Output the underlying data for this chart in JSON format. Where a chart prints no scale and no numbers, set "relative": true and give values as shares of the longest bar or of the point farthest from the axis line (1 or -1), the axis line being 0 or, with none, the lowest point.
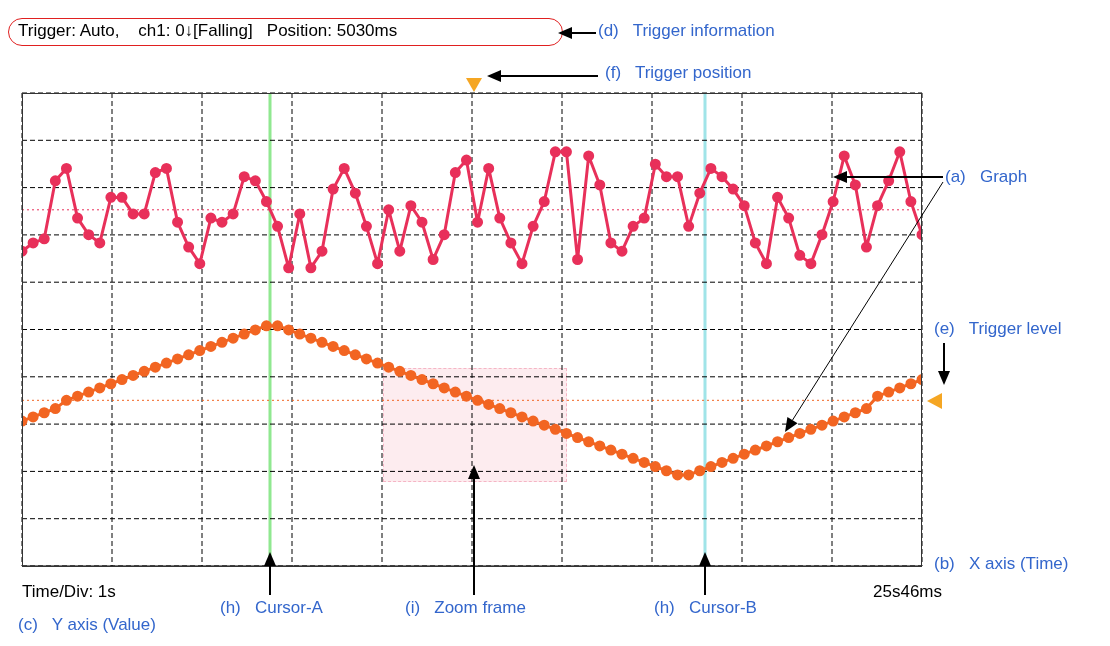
{
  "chart_data": {
    "type": "line",
    "relative": true,
    "grid": true,
    "marker": "circle",
    "line_style": "solid",
    "legend": false,
    "categories": [
      null,
      null,
      null,
      null,
      null,
      null,
      null,
      null,
      null,
      null,
      null,
      null,
      null,
      null,
      null,
      null,
      null,
      null,
      null,
      null,
      null,
      null,
      null,
      null,
      null,
      null,
      null,
      null,
      null,
      null,
      null,
      null,
      null,
      null,
      null,
      null,
      null,
      null,
      null,
      null,
      null,
      null,
      null,
      null,
      null,
      null,
      null,
      null,
      null,
      null,
      null,
      null,
      null,
      null,
      null,
      null,
      null,
      null,
      null,
      null,
      null,
      null,
      null,
      null,
      null,
      null,
      null,
      null,
      null,
      null,
      null,
      null,
      null,
      null,
      null,
      null,
      null,
      null,
      null,
      null,
      null,
      null
    ],
    "series": [
      {
        "color": "#e8305a",
        "values": [
          0.76,
          0.78,
          0.79,
          0.93,
          0.96,
          0.84,
          0.8,
          0.78,
          0.89,
          0.89,
          0.85,
          0.85,
          0.95,
          0.96,
          0.83,
          0.77,
          0.73,
          0.84,
          0.83,
          0.85,
          0.94,
          0.93,
          0.88,
          0.82,
          0.72,
          0.85,
          0.72,
          0.76,
          0.91,
          0.96,
          0.9,
          0.82,
          0.73,
          0.86,
          0.76,
          0.87,
          0.83,
          0.74,
          0.8,
          0.95,
          0.98,
          0.83,
          0.96,
          0.84,
          0.78,
          0.73,
          0.82,
          0.88,
          1.0,
          1.0,
          0.74,
          0.99,
          0.92,
          0.78,
          0.76,
          0.82,
          0.84,
          0.97,
          0.94,
          0.94,
          0.82,
          0.9,
          0.96,
          0.94,
          0.91,
          0.87,
          0.78,
          0.73,
          0.89,
          0.84,
          0.75,
          0.73,
          0.8,
          0.88,
          0.99,
          0.92,
          0.77,
          0.87,
          0.93,
          1.0,
          0.88,
          0.8
        ]
      },
      {
        "color": "#f26522",
        "values": [
          0.35,
          0.36,
          0.37,
          0.38,
          0.4,
          0.41,
          0.42,
          0.43,
          0.44,
          0.45,
          0.46,
          0.47,
          0.48,
          0.49,
          0.5,
          0.51,
          0.52,
          0.53,
          0.54,
          0.55,
          0.56,
          0.57,
          0.58,
          0.58,
          0.57,
          0.56,
          0.55,
          0.54,
          0.53,
          0.52,
          0.51,
          0.5,
          0.49,
          0.48,
          0.47,
          0.46,
          0.45,
          0.44,
          0.43,
          0.42,
          0.41,
          0.4,
          0.39,
          0.38,
          0.37,
          0.36,
          0.35,
          0.34,
          0.33,
          0.32,
          0.31,
          0.3,
          0.29,
          0.28,
          0.27,
          0.26,
          0.25,
          0.24,
          0.23,
          0.22,
          0.22,
          0.23,
          0.24,
          0.25,
          0.26,
          0.27,
          0.28,
          0.29,
          0.3,
          0.31,
          0.32,
          0.33,
          0.34,
          0.35,
          0.36,
          0.37,
          0.38,
          0.41,
          0.42,
          0.43,
          0.44,
          0.45
        ]
      }
    ],
    "ref_lines": [
      {
        "axis": "y",
        "value": 0.86,
        "color": "#e8305a",
        "line_style": "dotted"
      },
      {
        "axis": "y",
        "value": 0.4,
        "color": "#f26522",
        "line_style": "dotted"
      }
    ],
    "annotations": [
      "Trigger: Auto,    ch1: 0↓[Falling]   Position: 5030ms",
      "(d)   Trigger information",
      "(f)   Trigger position",
      "(a)   Graph",
      "(e)   Trigger level",
      "(b)   X axis (Time)",
      "Time/Div: 1s",
      "25s46ms",
      "(c)   Y axis (Value)",
      "(h)   Cursor-A",
      "(i)   Zoom frame",
      "(h)   Cursor-B"
    ]
  }
}
